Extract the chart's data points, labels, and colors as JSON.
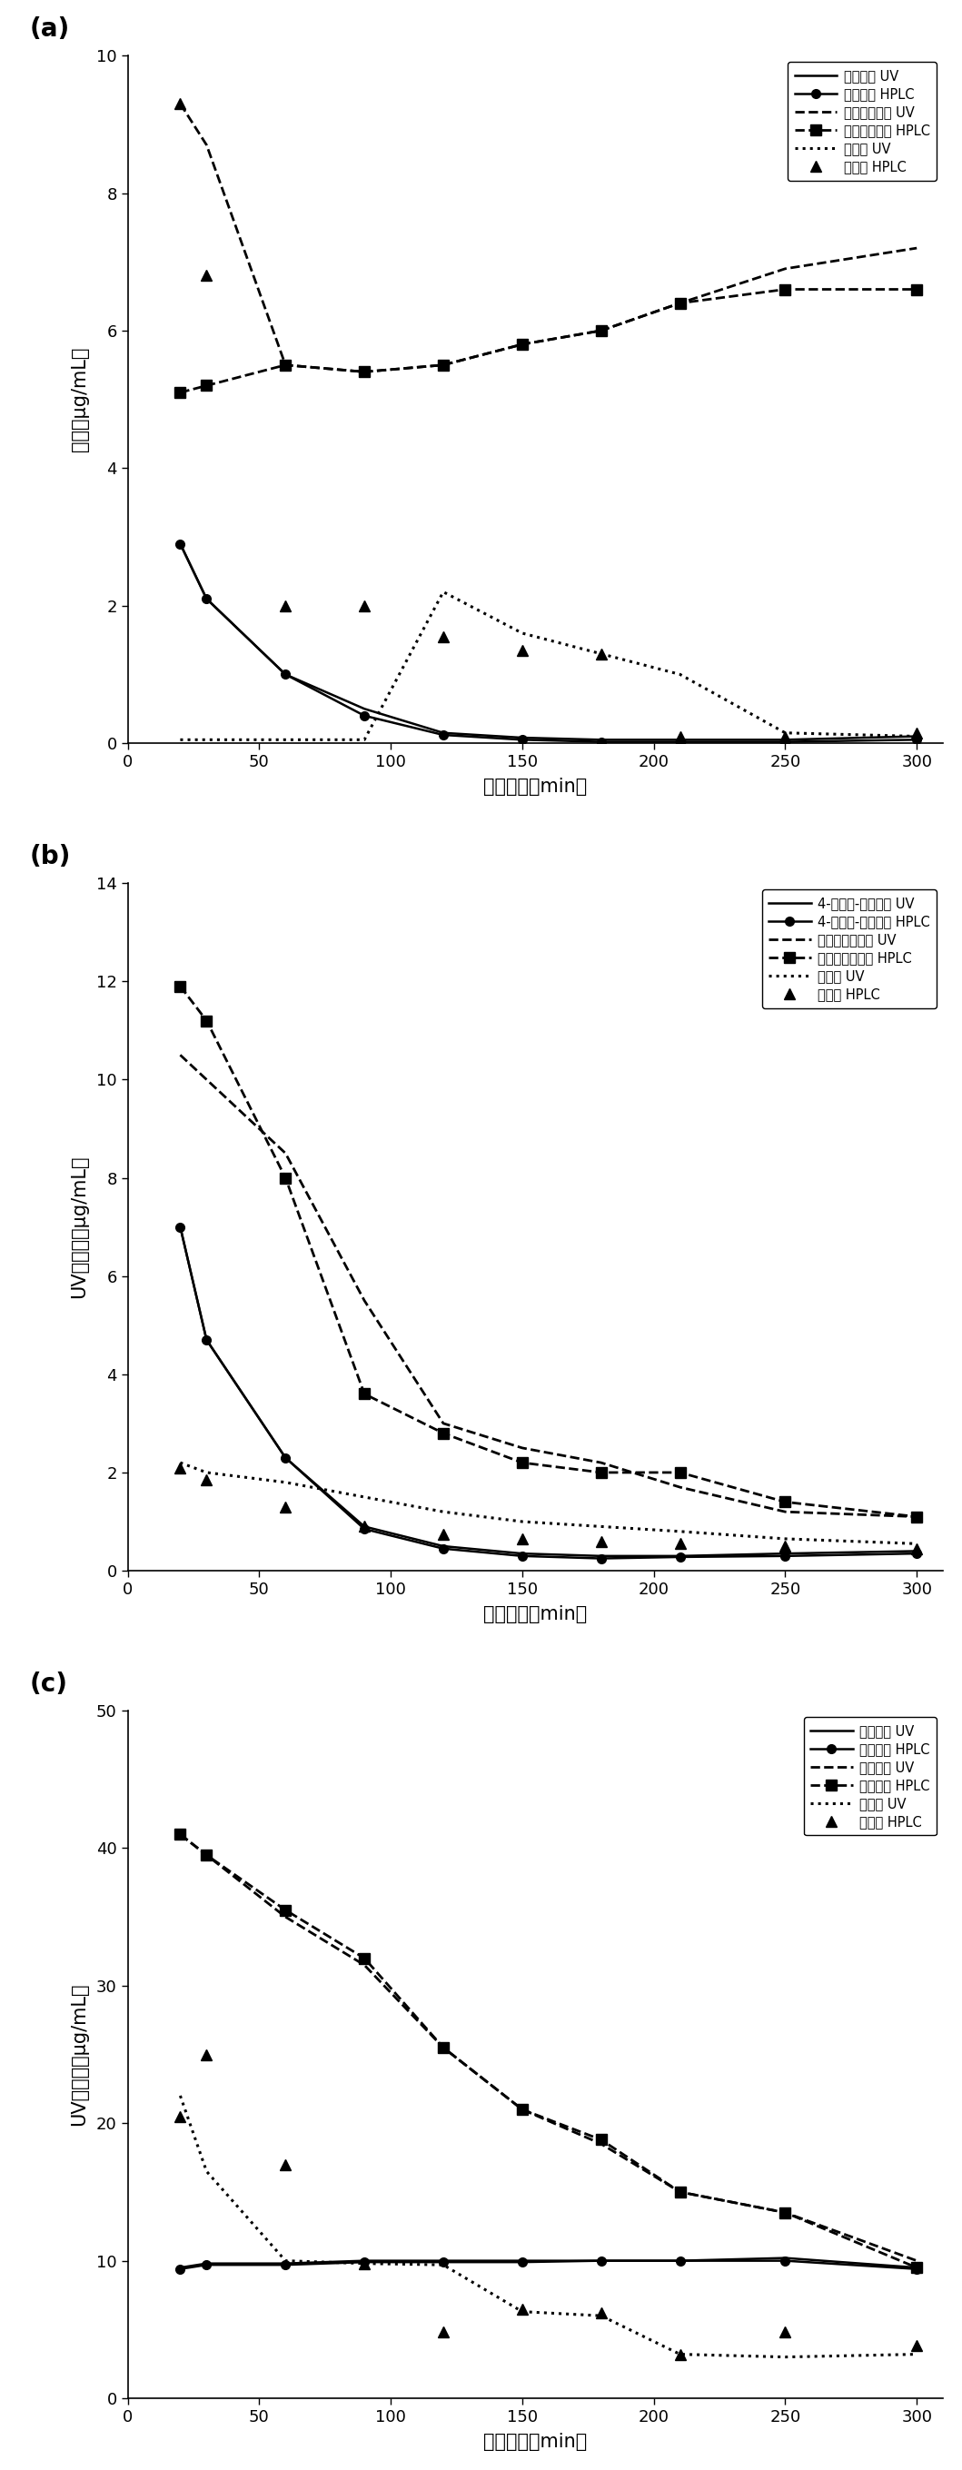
{
  "panel_a": {
    "title_label": "(a)",
    "ylabel": "含量（μg/mL）",
    "xlabel": "提取时间（min）",
    "ylim": [
      0,
      10
    ],
    "yticks": [
      0,
      2,
      4,
      6,
      8,
      10
    ],
    "xlim": [
      0,
      310
    ],
    "xticks": [
      0,
      50,
      100,
      150,
      200,
      250,
      300
    ],
    "series": [
      {
        "label": "异佛尔锐 UV",
        "style": "solid",
        "marker": null,
        "x": [
          20,
          30,
          60,
          90,
          120,
          150,
          180,
          210,
          250,
          300
        ],
        "y": [
          2.9,
          2.1,
          1.0,
          0.5,
          0.15,
          0.08,
          0.05,
          0.05,
          0.05,
          0.1
        ]
      },
      {
        "label": "异佛尔锐 HPLC",
        "style": "solid",
        "marker": "o",
        "x": [
          20,
          30,
          60,
          90,
          120,
          150,
          180,
          210,
          250,
          300
        ],
        "y": [
          2.9,
          2.1,
          1.0,
          0.4,
          0.12,
          0.05,
          0.02,
          0.02,
          0.02,
          0.05
        ]
      },
      {
        "label": "莓术双环烯锐 UV",
        "style": "dashed",
        "marker": null,
        "x": [
          20,
          30,
          60,
          90,
          120,
          150,
          180,
          210,
          250,
          300
        ],
        "y": [
          9.3,
          8.7,
          5.5,
          5.4,
          5.5,
          5.8,
          6.0,
          6.4,
          6.9,
          7.2
        ]
      },
      {
        "label": "莓术双环烯锐 HPLC",
        "style": "dashed",
        "marker": "s",
        "x": [
          20,
          30,
          60,
          90,
          120,
          150,
          180,
          210,
          250,
          300
        ],
        "y": [
          5.1,
          5.2,
          5.5,
          5.4,
          5.5,
          5.8,
          6.0,
          6.4,
          6.6,
          6.6
        ]
      },
      {
        "label": "吉马锐 UV",
        "style": "dotted",
        "marker": null,
        "x": [
          20,
          30,
          60,
          90,
          120,
          150,
          180,
          210,
          250,
          300
        ],
        "y": [
          0.05,
          0.05,
          0.05,
          0.05,
          2.2,
          1.6,
          1.3,
          1.0,
          0.15,
          0.1
        ]
      },
      {
        "label": "吉马锐 HPLC",
        "style": "none",
        "marker": "^",
        "x": [
          20,
          30,
          60,
          90,
          120,
          150,
          180,
          210,
          250,
          300
        ],
        "y": [
          9.3,
          6.8,
          2.0,
          2.0,
          1.55,
          1.35,
          1.3,
          0.1,
          0.1,
          0.15
        ]
      }
    ]
  },
  "panel_b": {
    "title_label": "(b)",
    "ylabel": "UV测定値（μg/mL）",
    "xlabel": "提取时间（min）",
    "ylim": [
      0,
      14
    ],
    "yticks": [
      0,
      2,
      4,
      6,
      8,
      10,
      12,
      14
    ],
    "xlim": [
      0,
      310
    ],
    "xticks": [
      0,
      50,
      100,
      150,
      200,
      250,
      300
    ],
    "series": [
      {
        "label": "4-亚甲基-异佛尔锐 UV",
        "style": "solid",
        "marker": null,
        "x": [
          20,
          30,
          60,
          90,
          120,
          150,
          180,
          210,
          250,
          300
        ],
        "y": [
          7.0,
          4.7,
          2.3,
          0.9,
          0.5,
          0.35,
          0.3,
          0.3,
          0.35,
          0.4
        ]
      },
      {
        "label": "4-亚甲基-异佛尔锐 HPLC",
        "style": "solid",
        "marker": "o",
        "x": [
          20,
          30,
          60,
          90,
          120,
          150,
          180,
          210,
          250,
          300
        ],
        "y": [
          7.0,
          4.7,
          2.3,
          0.85,
          0.45,
          0.3,
          0.25,
          0.28,
          0.3,
          0.35
        ]
      },
      {
        "label": "莓术吵嘎二烯锐 UV",
        "style": "dashed",
        "marker": null,
        "x": [
          20,
          30,
          60,
          90,
          120,
          150,
          180,
          210,
          250,
          300
        ],
        "y": [
          10.5,
          10.0,
          8.5,
          5.5,
          3.0,
          2.5,
          2.2,
          1.7,
          1.2,
          1.1
        ]
      },
      {
        "label": "莓术吵嘎二烯锐 HPLC",
        "style": "dashed",
        "marker": "s",
        "x": [
          20,
          30,
          60,
          90,
          120,
          150,
          180,
          210,
          250,
          300
        ],
        "y": [
          11.9,
          11.2,
          8.0,
          3.6,
          2.8,
          2.2,
          2.0,
          2.0,
          1.4,
          1.1
        ]
      },
      {
        "label": "莓术醇 UV",
        "style": "dotted",
        "marker": null,
        "x": [
          20,
          30,
          60,
          90,
          120,
          150,
          180,
          210,
          250,
          300
        ],
        "y": [
          2.2,
          2.0,
          1.8,
          1.5,
          1.2,
          1.0,
          0.9,
          0.8,
          0.65,
          0.55
        ]
      },
      {
        "label": "莓术醇 HPLC",
        "style": "none",
        "marker": "^",
        "x": [
          20,
          30,
          60,
          90,
          120,
          150,
          180,
          210,
          250,
          300
        ],
        "y": [
          2.1,
          1.85,
          1.3,
          0.9,
          0.75,
          0.65,
          0.6,
          0.55,
          0.5,
          0.45
        ]
      }
    ]
  },
  "panel_c": {
    "title_label": "(c)",
    "ylabel": "UV测定値（μg/mL）",
    "xlabel": "提取时间（min）",
    "ylim": [
      0,
      50
    ],
    "yticks": [
      0,
      10,
      20,
      30,
      40,
      50
    ],
    "xlim": [
      0,
      310
    ],
    "xticks": [
      0,
      50,
      100,
      150,
      200,
      250,
      300
    ],
    "series": [
      {
        "label": "莓术烯醇 UV",
        "style": "solid",
        "marker": null,
        "x": [
          20,
          30,
          60,
          90,
          120,
          150,
          180,
          210,
          250,
          300
        ],
        "y": [
          9.5,
          9.8,
          9.8,
          10.0,
          10.0,
          10.0,
          10.0,
          10.0,
          10.2,
          9.5
        ]
      },
      {
        "label": "莓术烯醇 HPLC",
        "style": "solid",
        "marker": "o",
        "x": [
          20,
          30,
          60,
          90,
          120,
          150,
          180,
          210,
          250,
          300
        ],
        "y": [
          9.4,
          9.7,
          9.7,
          9.9,
          9.9,
          9.9,
          10.0,
          10.0,
          10.0,
          9.4
        ]
      },
      {
        "label": "莓术二锐 UV",
        "style": "dashed",
        "marker": null,
        "x": [
          20,
          30,
          60,
          90,
          120,
          150,
          180,
          210,
          250,
          300
        ],
        "y": [
          41.0,
          39.5,
          35.0,
          31.5,
          25.5,
          21.0,
          18.5,
          15.0,
          13.5,
          10.0
        ]
      },
      {
        "label": "莓术二锐 HPLC",
        "style": "dashed",
        "marker": "s",
        "x": [
          20,
          30,
          60,
          90,
          120,
          150,
          180,
          210,
          250,
          300
        ],
        "y": [
          41.0,
          39.5,
          35.5,
          32.0,
          25.5,
          21.0,
          18.8,
          15.0,
          13.5,
          9.5
        ]
      },
      {
        "label": "莓术锐 UV",
        "style": "dotted",
        "marker": null,
        "x": [
          20,
          30,
          60,
          90,
          120,
          150,
          180,
          210,
          250,
          300
        ],
        "y": [
          22.0,
          16.5,
          10.0,
          9.8,
          9.7,
          6.3,
          6.0,
          3.2,
          3.0,
          3.2
        ]
      },
      {
        "label": "莓术锐 HPLC",
        "style": "none",
        "marker": "^",
        "x": [
          20,
          30,
          60,
          90,
          120,
          150,
          180,
          210,
          250,
          300
        ],
        "y": [
          20.5,
          25.0,
          17.0,
          9.8,
          4.8,
          6.5,
          6.2,
          3.2,
          4.8,
          3.8
        ]
      }
    ]
  }
}
